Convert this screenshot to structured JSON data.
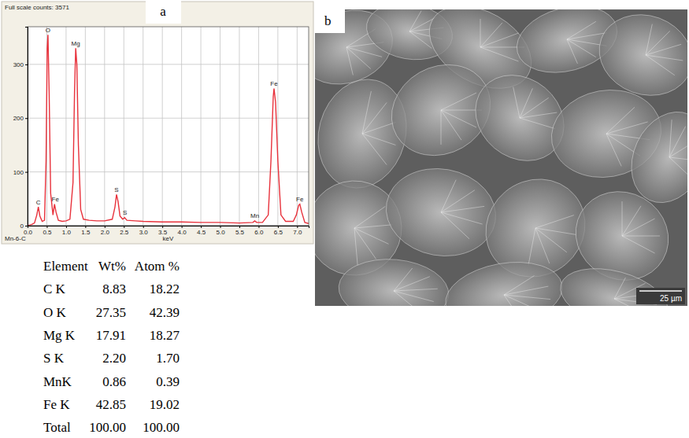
{
  "panel_labels": [
    "a",
    "b"
  ],
  "chart_data": {
    "type": "line",
    "title": "Full scale counts: 3571",
    "subtitle": "Mn-6-C",
    "x_label": "keV",
    "x": [
      0,
      0.1,
      0.18,
      0.24,
      0.28,
      0.32,
      0.38,
      0.44,
      0.48,
      0.51,
      0.53,
      0.56,
      0.6,
      0.66,
      0.7,
      0.74,
      0.8,
      0.9,
      1.0,
      1.1,
      1.18,
      1.22,
      1.25,
      1.28,
      1.32,
      1.38,
      1.45,
      1.6,
      1.8,
      2.0,
      2.2,
      2.27,
      2.31,
      2.35,
      2.4,
      2.47,
      2.52,
      2.58,
      2.8,
      3.0,
      3.5,
      4.0,
      4.5,
      5.0,
      5.5,
      5.85,
      5.9,
      5.95,
      6.1,
      6.25,
      6.32,
      6.38,
      6.4,
      6.44,
      6.5,
      6.58,
      6.7,
      6.9,
      6.98,
      7.04,
      7.07,
      7.12,
      7.2,
      7.3
    ],
    "values": [
      0,
      2,
      5,
      20,
      35,
      18,
      8,
      10,
      120,
      330,
      355,
      250,
      60,
      20,
      40,
      25,
      10,
      8,
      9,
      12,
      80,
      250,
      330,
      300,
      150,
      30,
      12,
      10,
      9,
      9,
      12,
      35,
      58,
      45,
      18,
      12,
      15,
      10,
      9,
      8,
      7,
      7,
      6,
      6,
      5,
      6,
      9,
      6,
      6,
      20,
      120,
      240,
      255,
      230,
      120,
      20,
      8,
      8,
      20,
      38,
      40,
      25,
      6,
      4
    ],
    "color": "#e8323c",
    "xlim": [
      0,
      7.3
    ],
    "xticks": [
      {
        "value": 0,
        "label": "0.0"
      },
      {
        "value": 0.5,
        "label": "0.5"
      },
      {
        "value": 1,
        "label": "1.0"
      },
      {
        "value": 1.5,
        "label": "1.5"
      },
      {
        "value": 2,
        "label": "2.0"
      },
      {
        "value": 2.5,
        "label": "2.5"
      },
      {
        "value": 3,
        "label": "3.0"
      },
      {
        "value": 3.5,
        "label": "3.5"
      },
      {
        "value": 4,
        "label": "4.0"
      },
      {
        "value": 4.5,
        "label": "4.5"
      },
      {
        "value": 5,
        "label": "5.0"
      },
      {
        "value": 5.5,
        "label": "5.5"
      },
      {
        "value": 6,
        "label": "6.0"
      },
      {
        "value": 6.5,
        "label": "6.5"
      },
      {
        "value": 7,
        "label": "7.0"
      }
    ],
    "ylim": [
      0,
      370
    ],
    "yticks": [
      0,
      100,
      200,
      300
    ],
    "grid": true,
    "annotations": [
      {
        "text": "C",
        "x": 0.28,
        "y": 37
      },
      {
        "text": "O",
        "x": 0.53,
        "y": 357
      },
      {
        "text": "Fe",
        "x": 0.72,
        "y": 42
      },
      {
        "text": "Mg",
        "x": 1.25,
        "y": 332
      },
      {
        "text": "S",
        "x": 2.31,
        "y": 60
      },
      {
        "text": "S",
        "x": 2.53,
        "y": 17
      },
      {
        "text": "Mn",
        "x": 5.9,
        "y": 11
      },
      {
        "text": "Fe",
        "x": 6.4,
        "y": 257
      },
      {
        "text": "Fe",
        "x": 7.07,
        "y": 42
      }
    ]
  },
  "table": {
    "header": [
      "Element",
      "Wt%",
      "Atom %"
    ],
    "rows": [
      [
        "C K",
        "8.83",
        "18.22"
      ],
      [
        "O K",
        "27.35",
        "42.39"
      ],
      [
        "Mg K",
        "17.91",
        "18.27"
      ],
      [
        "S K",
        "2.20",
        "1.70"
      ],
      [
        "MnK",
        "0.86",
        "0.39"
      ],
      [
        "Fe K",
        "42.85",
        "19.02"
      ],
      [
        "Total",
        "100.00",
        "100.00"
      ]
    ]
  },
  "image": {
    "scale_bar": "25 µm"
  }
}
